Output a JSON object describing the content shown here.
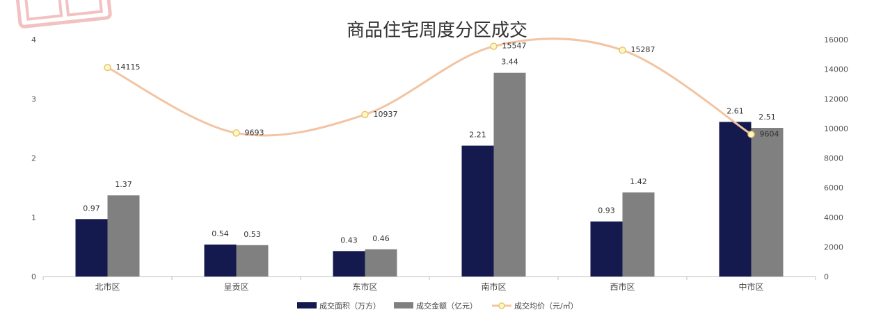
{
  "chart_data": {
    "type": "bar",
    "title": "商品住宅周度分区成交",
    "categories": [
      "北市区",
      "呈贡区",
      "东市区",
      "南市区",
      "西市区",
      "中市区"
    ],
    "series": [
      {
        "name": "成交面积（万方）",
        "kind": "bar",
        "axis": "left",
        "values": [
          0.97,
          0.54,
          0.43,
          2.21,
          0.93,
          2.61
        ]
      },
      {
        "name": "成交金额（亿元）",
        "kind": "bar",
        "axis": "left",
        "values": [
          1.37,
          0.53,
          0.46,
          3.44,
          1.42,
          2.51
        ]
      },
      {
        "name": "成交均价（元/㎡）",
        "kind": "line",
        "axis": "right",
        "values": [
          14115,
          9693,
          10937,
          15547,
          15287,
          9604
        ]
      }
    ],
    "left_axis": {
      "ylim": [
        0,
        4
      ],
      "ticks": [
        0,
        1,
        2,
        3,
        4
      ]
    },
    "right_axis": {
      "ylim": [
        0,
        16000
      ],
      "ticks": [
        0,
        2000,
        4000,
        6000,
        8000,
        10000,
        12000,
        14000,
        16000
      ]
    },
    "legend_position": "bottom",
    "grid": false,
    "colors": {
      "area": "#141a4e",
      "amount": "#808080",
      "price_line": "#f2c4a3",
      "price_marker_fill": "#fff7cc",
      "price_marker_stroke": "#e8c766",
      "axis": "#bfbfbf",
      "watermark": "#d9534f"
    }
  }
}
